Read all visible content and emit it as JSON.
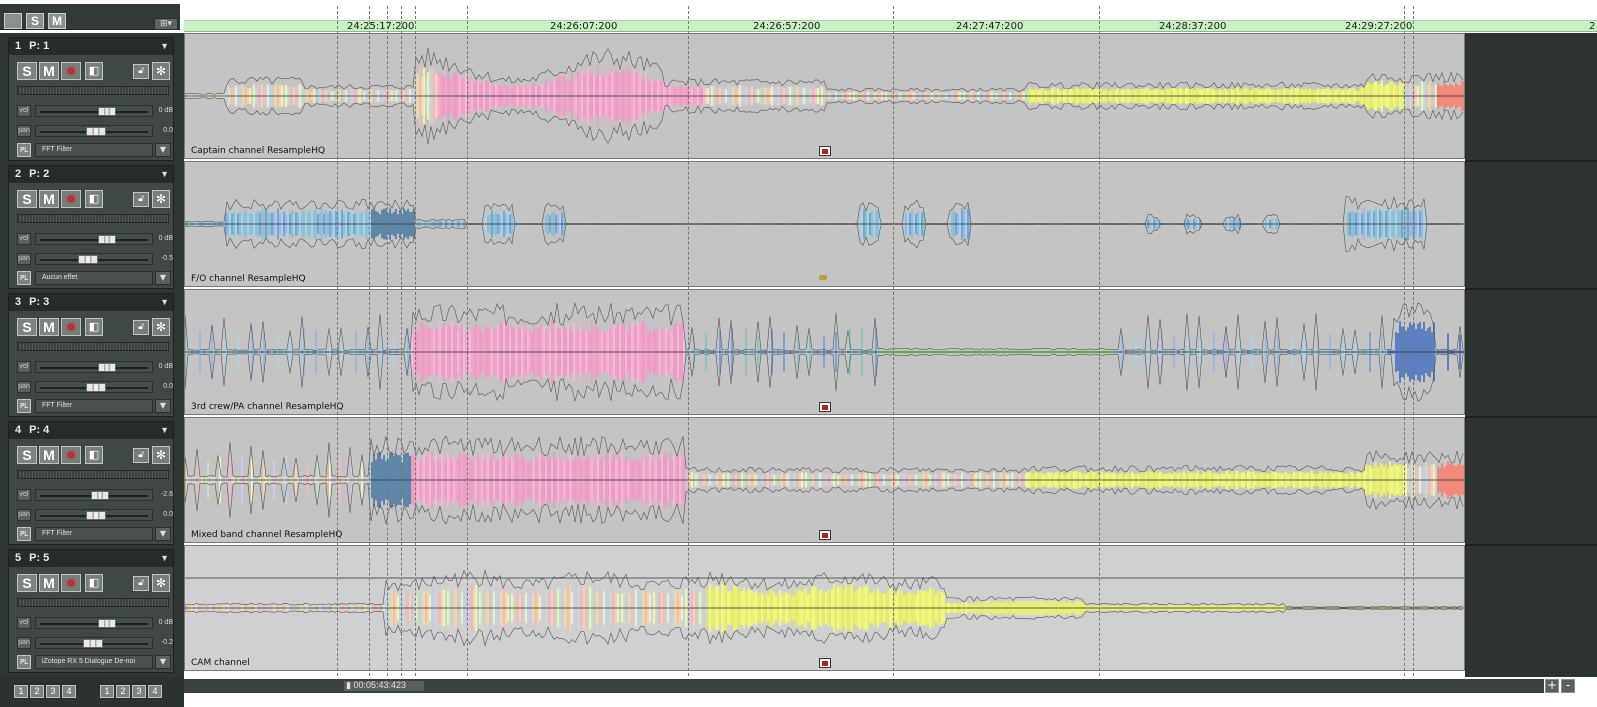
{
  "toolbar": {
    "solo_label": "S",
    "mute_label": "M"
  },
  "ruler": {
    "labels": [
      "24:25:17:200",
      "24:26:07:200",
      "24:26:57:200",
      "24:27:47:200",
      "24:28:37:200",
      "24:29:27:200",
      "2"
    ]
  },
  "tracks": [
    {
      "number": "1",
      "name": "P: 1",
      "vol": "0 dB",
      "pan": "0.0",
      "vol_level": 0.62,
      "pan_level": 0.5,
      "fx_label": "PL",
      "effect": "FFT Filter",
      "clip_name": "Captain channel  ResampleHQ"
    },
    {
      "number": "2",
      "name": "P: 2",
      "vol": "0 dB",
      "pan": "-0.5",
      "vol_level": 0.62,
      "pan_level": 0.42,
      "fx_label": "PL",
      "effect": "Aucun effet",
      "clip_name": "F/O channel  ResampleHQ"
    },
    {
      "number": "3",
      "name": "P: 3",
      "vol": "0 dB",
      "pan": "0.0",
      "vol_level": 0.62,
      "pan_level": 0.5,
      "fx_label": "PL",
      "effect": "FFT Filter",
      "clip_name": "3rd crew/PA  channel  ResampleHQ"
    },
    {
      "number": "4",
      "name": "P: 4",
      "vol": "-2.6",
      "pan": "0.0",
      "vol_level": 0.55,
      "pan_level": 0.5,
      "fx_label": "PL",
      "effect": "FFT Filter",
      "clip_name": "Mixed band channel  ResampleHQ"
    },
    {
      "number": "5",
      "name": "P: 5",
      "vol": "0 dB",
      "pan": "-0.2",
      "vol_level": 0.62,
      "pan_level": 0.47,
      "fx_label": "PL",
      "effect": "iZotope RX 5 Dialogue De-noi",
      "clip_name": "CAM channel"
    }
  ],
  "labels": {
    "vol": "vol",
    "pan": "pan"
  },
  "bottom": {
    "page_buttons_a": [
      "1",
      "2",
      "3",
      "4"
    ],
    "page_buttons_b": [
      "1",
      "2",
      "3",
      "4"
    ],
    "position": "00:05:43:423",
    "zoom_in": "+",
    "zoom_out": "-"
  },
  "colors": {
    "header_bg": "#404844",
    "lane_bg": "#c4c4c4",
    "ruler_bg": "#c9f0c4",
    "record": "#c0302e",
    "wave_yellow": "#eaf07a",
    "wave_pink": "#f0a8d0",
    "wave_blue": "#8fb4e0"
  }
}
